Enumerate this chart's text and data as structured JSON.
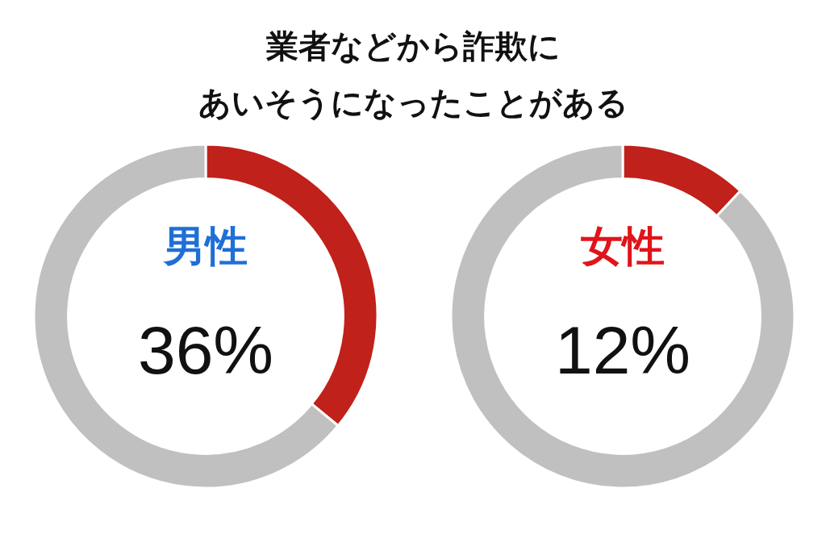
{
  "chart_data": [
    {
      "type": "other",
      "title": "業者などから詐欺に",
      "subtitle": "あいそうになったことがある"
    },
    {
      "type": "donut",
      "title": "男性",
      "categories": [
        null,
        null
      ],
      "values": [
        36,
        64
      ],
      "colors": [
        "#c0211a",
        "#c0c0c0"
      ],
      "annotations": [
        "36%"
      ]
    },
    {
      "type": "donut",
      "title": "女性",
      "categories": [
        null,
        null
      ],
      "values": [
        12,
        88
      ],
      "colors": [
        "#c0211a",
        "#c0c0c0"
      ],
      "annotations": [
        "12%"
      ]
    }
  ]
}
